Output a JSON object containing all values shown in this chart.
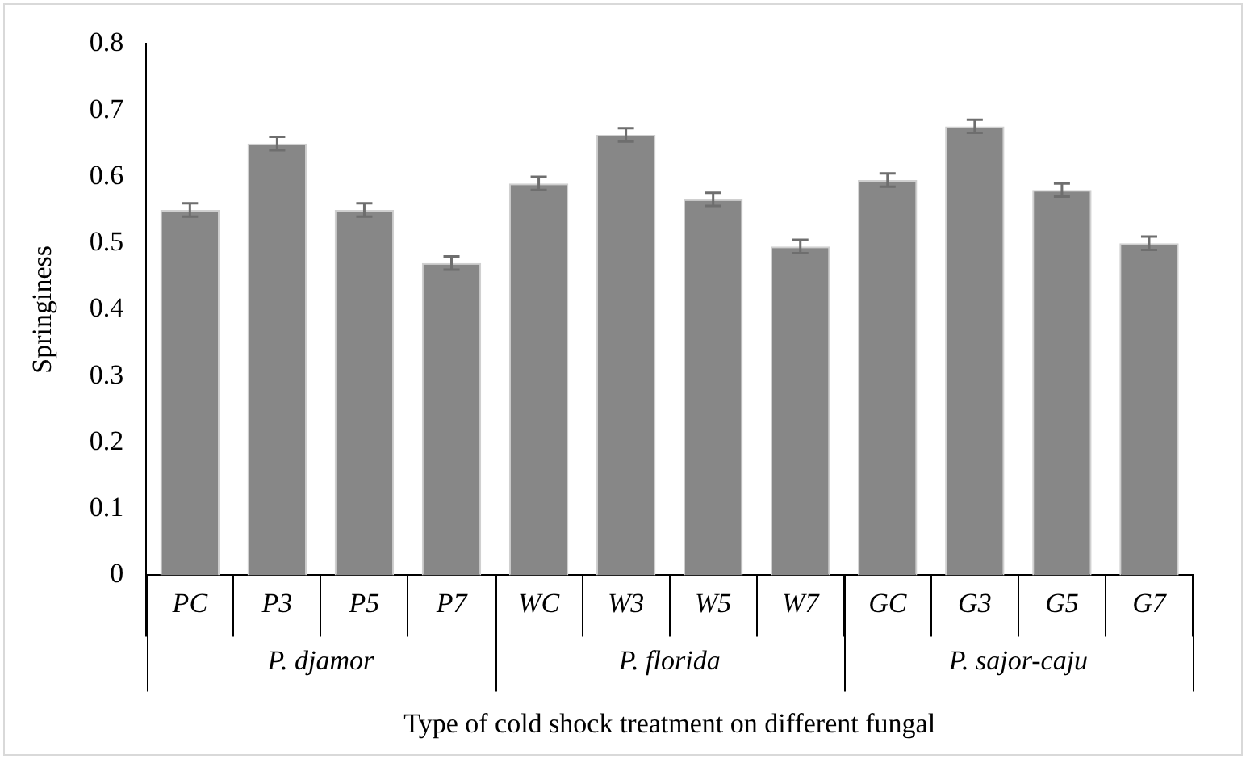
{
  "chart_data": {
    "type": "bar",
    "xlabel": "Type of cold shock treatment on different fungal",
    "ylabel": "Springiness",
    "categories": [
      "PC",
      "P3",
      "P5",
      "P7",
      "WC",
      "W3",
      "W5",
      "W7",
      "GC",
      "G3",
      "G5",
      "G7"
    ],
    "values": [
      0.55,
      0.65,
      0.55,
      0.47,
      0.59,
      0.663,
      0.566,
      0.495,
      0.595,
      0.676,
      0.58,
      0.5
    ],
    "errors": [
      0.01,
      0.01,
      0.01,
      0.01,
      0.01,
      0.01,
      0.01,
      0.01,
      0.01,
      0.01,
      0.01,
      0.01
    ],
    "color": "#878787",
    "ylim": [
      0,
      0.8
    ],
    "yticks": [
      0,
      0.1,
      0.2,
      0.3,
      0.4,
      0.5,
      0.6,
      0.7,
      0.8
    ],
    "grid": false,
    "annotations": [
      "P. djamor",
      "P. florida",
      "P. sajor-caju"
    ]
  }
}
